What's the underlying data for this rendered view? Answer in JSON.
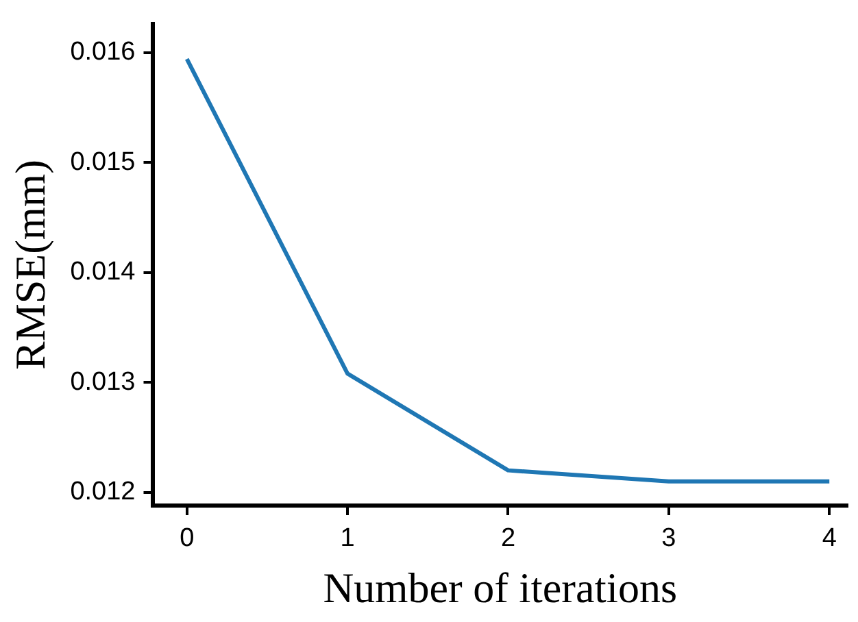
{
  "chart_data": {
    "type": "line",
    "xlabel": "Number of iterations",
    "ylabel": "RMSE(mm)",
    "x": [
      0,
      1,
      2,
      3,
      4
    ],
    "series": [
      {
        "color": "#1f77b4",
        "values": [
          0.01594,
          0.01308,
          0.0122,
          0.0121,
          0.0121
        ]
      }
    ],
    "xlim": [
      -0.21,
      4.11
    ],
    "xticks": [
      0,
      1,
      2,
      3,
      4
    ],
    "ylim": [
      0.01188,
      0.01626
    ],
    "yticks": [
      0.012,
      0.013,
      0.014,
      0.015,
      0.016
    ],
    "grid": false,
    "legend": false,
    "marker": "none",
    "line_style": "solid"
  }
}
